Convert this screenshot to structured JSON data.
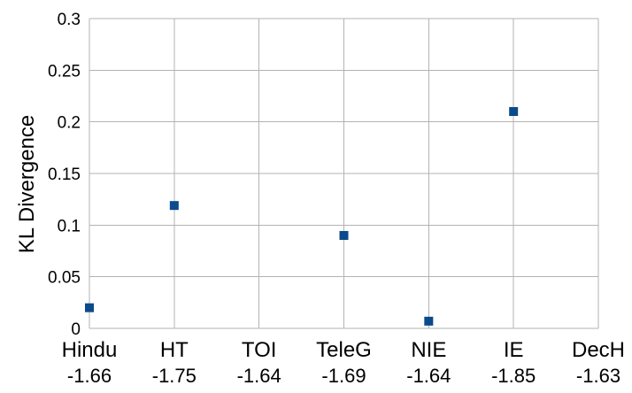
{
  "chart_data": {
    "type": "scatter",
    "title": "",
    "xlabel": "",
    "ylabel": "KL Divergence",
    "categories": [
      "Hindu",
      "HT",
      "TOI",
      "TeleG",
      "NIE",
      "IE",
      "DecH"
    ],
    "sublabels": [
      "-1.66",
      "-1.75",
      "-1.64",
      "-1.69",
      "-1.64",
      "-1.85",
      "-1.63"
    ],
    "series": [
      {
        "values": [
          0.02,
          0.119,
          null,
          0.09,
          0.007,
          0.21,
          null
        ]
      }
    ],
    "ylim": [
      0,
      0.3
    ],
    "yticks": [
      "0",
      "0.05",
      "0.1",
      "0.15",
      "0.2",
      "0.25",
      "0.3"
    ],
    "ytick_values": [
      0,
      0.05,
      0.1,
      0.15,
      0.2,
      0.25,
      0.3
    ],
    "grid": true,
    "legend": "none",
    "colors": {
      "marker": "#0b4a8b",
      "grid": "#b3b3b3",
      "text": "#000000"
    }
  }
}
